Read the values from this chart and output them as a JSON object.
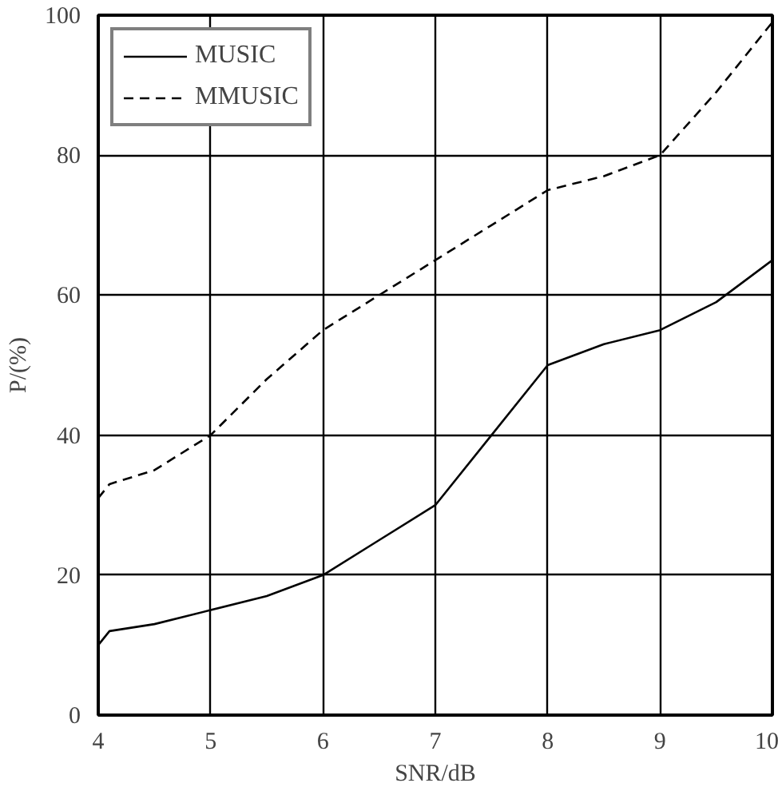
{
  "chart_data": {
    "type": "line",
    "xlabel": "SNR/dB",
    "ylabel": "P/(%)",
    "x": [
      4,
      4.1,
      4.5,
      5,
      5.5,
      6,
      6.5,
      7,
      7.5,
      8,
      8.5,
      9,
      9.5,
      10
    ],
    "series": [
      {
        "name": "MUSIC",
        "color": "#000000",
        "line_style": "solid",
        "values": [
          10,
          12,
          13,
          15,
          17,
          20,
          25,
          30,
          40,
          50,
          53,
          55,
          59,
          65
        ]
      },
      {
        "name": "MMUSIC",
        "color": "#000000",
        "line_style": "dashed",
        "values": [
          31,
          33,
          35,
          40,
          48,
          55,
          60,
          65,
          70,
          75,
          77,
          80,
          89,
          99
        ]
      }
    ],
    "xlim": [
      4,
      10
    ],
    "ylim": [
      0,
      100
    ],
    "xticks": [
      4,
      5,
      6,
      7,
      8,
      9,
      10
    ],
    "yticks": [
      0,
      20,
      40,
      60,
      80,
      100
    ],
    "grid": true,
    "legend": "top left",
    "marker": "none"
  }
}
